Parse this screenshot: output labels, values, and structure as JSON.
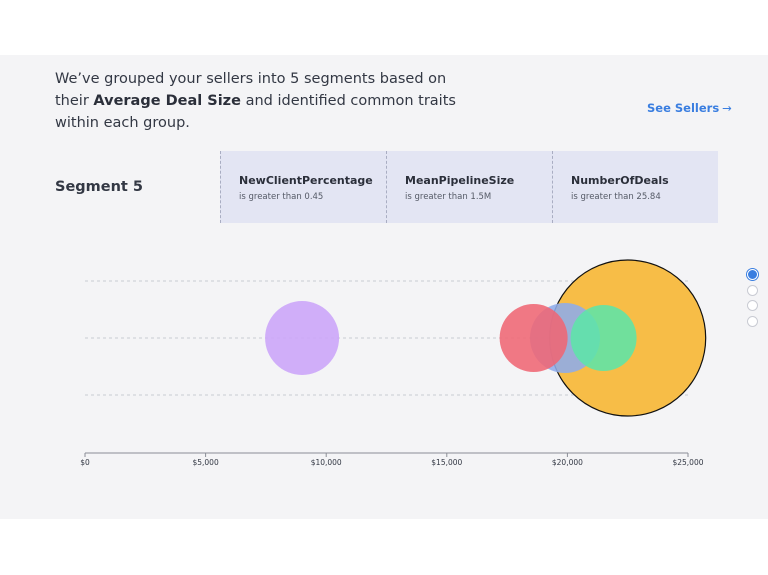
{
  "intro": {
    "before": "We’ve grouped your sellers into 5 segments based on their ",
    "bold": "Average Deal Size",
    "after": " and identified common traits within each group."
  },
  "see_sellers": {
    "label": "See Sellers",
    "arrow": "→"
  },
  "segment": {
    "title": "Segment 5"
  },
  "traits": [
    {
      "name": "NewClientPercentage",
      "condition": "is greater than 0.45"
    },
    {
      "name": "MeanPipelineSize",
      "condition": "is greater than 1.5M"
    },
    {
      "name": "NumberOfDeals",
      "condition": "is greater than 25.84"
    }
  ],
  "pagination": {
    "count": 4,
    "active": 0
  },
  "chart_data": {
    "type": "scatter",
    "title": "",
    "xlabel": "",
    "ylabel": "",
    "xlim": [
      0,
      25000
    ],
    "x_ticks": [
      "$0",
      "$5,000",
      "$10,000",
      "$15,000",
      "$20,000",
      "$25,000"
    ],
    "grid": "horizontal dashed",
    "series": [
      {
        "x": 9000,
        "color": "#cba4f9",
        "highlight": false
      },
      {
        "x": 22500,
        "color": "#f7bd47",
        "highlight": true
      },
      {
        "x": 19900,
        "color": "#8eacea",
        "highlight": false
      },
      {
        "x": 18600,
        "color": "#ef6674",
        "highlight": false
      },
      {
        "x": 21500,
        "color": "#5de5a9",
        "highlight": false
      }
    ]
  }
}
